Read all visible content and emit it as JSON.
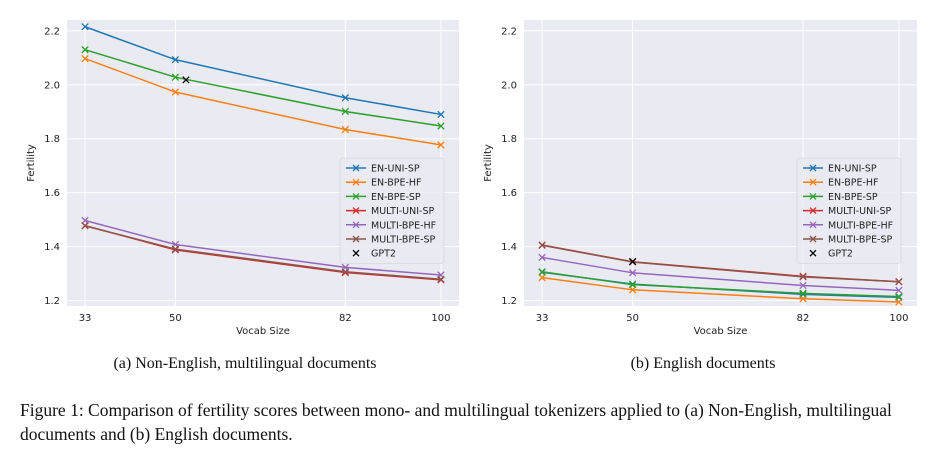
{
  "chart_data": [
    {
      "type": "line",
      "title": "",
      "xlabel": "Vocab Size",
      "ylabel": "Fertility",
      "x": [
        33,
        50,
        82,
        100
      ],
      "x_tick_labels": [
        "33",
        "50",
        "82",
        "100"
      ],
      "y_ticks": [
        1.2,
        1.4,
        1.6,
        1.8,
        2.0,
        2.2
      ],
      "y_tick_labels": [
        "1.2",
        "1.4",
        "1.6",
        "1.8",
        "2.0",
        "2.2"
      ],
      "ylim": [
        1.18,
        2.24
      ],
      "grid": true,
      "legend_position": "center-right",
      "series": [
        {
          "name": "EN-UNI-SP",
          "color": "#1f77b4",
          "marker": "x",
          "values": [
            2.215,
            2.093,
            1.952,
            1.89
          ]
        },
        {
          "name": "EN-BPE-HF",
          "color": "#ff7f0e",
          "marker": "x",
          "values": [
            2.097,
            1.973,
            1.834,
            1.777
          ]
        },
        {
          "name": "EN-BPE-SP",
          "color": "#2ca02c",
          "marker": "x",
          "values": [
            2.13,
            2.028,
            1.901,
            1.847
          ]
        },
        {
          "name": "MULTI-UNI-SP",
          "color": "#d62728",
          "marker": "x",
          "values": [
            1.478,
            1.388,
            1.304,
            1.277
          ]
        },
        {
          "name": "MULTI-BPE-HF",
          "color": "#9467bd",
          "marker": "x",
          "values": [
            1.497,
            1.408,
            1.323,
            1.295
          ]
        },
        {
          "name": "MULTI-BPE-SP",
          "color": "#8c564b",
          "marker": "x",
          "values": [
            1.477,
            1.391,
            1.307,
            1.279
          ]
        }
      ],
      "points": [
        {
          "name": "GPT2",
          "color": "#000000",
          "marker": "x",
          "x": 52,
          "y": 2.018
        }
      ]
    },
    {
      "type": "line",
      "title": "",
      "xlabel": "Vocab Size",
      "ylabel": "Fertility",
      "x": [
        33,
        50,
        82,
        100
      ],
      "x_tick_labels": [
        "33",
        "50",
        "82",
        "100"
      ],
      "y_ticks": [
        1.2,
        1.4,
        1.6,
        1.8,
        2.0,
        2.2
      ],
      "y_tick_labels": [
        "1.2",
        "1.4",
        "1.6",
        "1.8",
        "2.0",
        "2.2"
      ],
      "ylim": [
        1.18,
        2.24
      ],
      "grid": true,
      "legend_position": "center-right",
      "series": [
        {
          "name": "EN-UNI-SP",
          "color": "#1f77b4",
          "marker": "x",
          "values": [
            1.305,
            1.261,
            1.223,
            1.212
          ]
        },
        {
          "name": "EN-BPE-HF",
          "color": "#ff7f0e",
          "marker": "x",
          "values": [
            1.285,
            1.24,
            1.207,
            1.195
          ]
        },
        {
          "name": "EN-BPE-SP",
          "color": "#2ca02c",
          "marker": "x",
          "values": [
            1.307,
            1.259,
            1.227,
            1.215
          ]
        },
        {
          "name": "MULTI-UNI-SP",
          "color": "#d62728",
          "marker": "x",
          "values": [
            1.406,
            1.344,
            1.29,
            1.27
          ]
        },
        {
          "name": "MULTI-BPE-HF",
          "color": "#9467bd",
          "marker": "x",
          "values": [
            1.36,
            1.303,
            1.256,
            1.238
          ]
        },
        {
          "name": "MULTI-BPE-SP",
          "color": "#8c564b",
          "marker": "x",
          "values": [
            1.405,
            1.343,
            1.288,
            1.27
          ]
        }
      ],
      "points": [
        {
          "name": "GPT2",
          "color": "#000000",
          "marker": "x",
          "x": 50,
          "y": 1.345
        }
      ]
    }
  ],
  "captions": {
    "a": "(a) Non-English, multilingual documents",
    "b": "(b) English documents",
    "figure": "Figure 1: Comparison of fertility scores between mono- and multilingual tokenizers applied to (a) Non-English, multilingual documents and (b) English documents."
  }
}
